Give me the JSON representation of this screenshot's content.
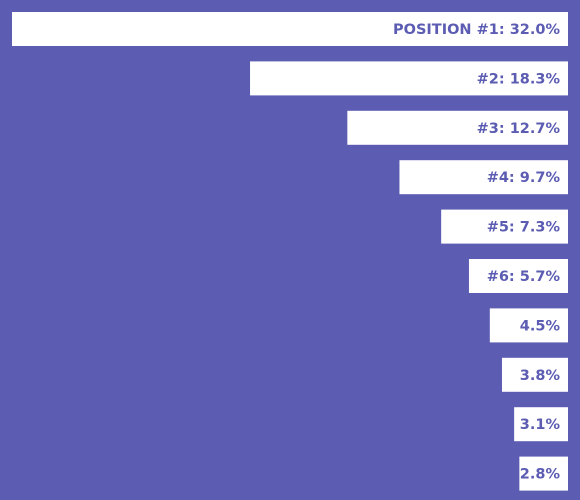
{
  "chart_data": {
    "type": "bar",
    "orientation": "horizontal",
    "values": [
      32.0,
      18.3,
      12.7,
      9.7,
      7.3,
      5.7,
      4.5,
      3.8,
      3.1,
      2.8
    ],
    "value_labels": [
      "POSITION #1: 32.0%",
      "#2: 18.3%",
      "#3: 12.7%",
      "#4: 9.7%",
      "#5: 7.3%",
      "#6: 5.7%",
      "4.5%",
      "3.8%",
      "3.1%",
      "2.8%"
    ],
    "color": "#ffffff",
    "background": "#5b5cb2",
    "label_color": "#5b5cb2"
  }
}
